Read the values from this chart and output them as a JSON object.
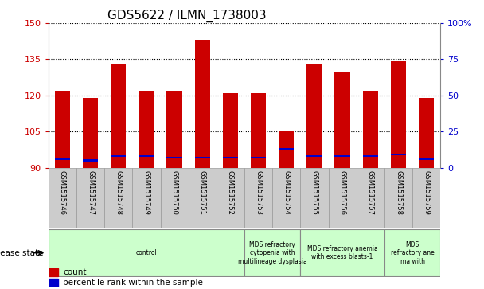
{
  "title": "GDS5622 / ILMN_1738003",
  "samples": [
    "GSM1515746",
    "GSM1515747",
    "GSM1515748",
    "GSM1515749",
    "GSM1515750",
    "GSM1515751",
    "GSM1515752",
    "GSM1515753",
    "GSM1515754",
    "GSM1515755",
    "GSM1515756",
    "GSM1515757",
    "GSM1515758",
    "GSM1515759"
  ],
  "counts": [
    122,
    119,
    133,
    122,
    122,
    143,
    121,
    121,
    105,
    133,
    130,
    122,
    134,
    119
  ],
  "percentile_ranks_pct": [
    6,
    5,
    8,
    8,
    7,
    7,
    7,
    7,
    13,
    8,
    8,
    8,
    9,
    6
  ],
  "ymin": 90,
  "ymax": 150,
  "yticks": [
    90,
    105,
    120,
    135,
    150
  ],
  "right_yticks": [
    0,
    25,
    50,
    75,
    100
  ],
  "bar_color_red": "#CC0000",
  "bar_color_blue": "#0000CC",
  "bar_width": 0.55,
  "disease_groups": [
    {
      "label": "control",
      "start": 0,
      "end": 7
    },
    {
      "label": "MDS refractory\ncytopenia with\nmultilineage dysplasia",
      "start": 7,
      "end": 9
    },
    {
      "label": "MDS refractory anemia\nwith excess blasts-1",
      "start": 9,
      "end": 12
    },
    {
      "label": "MDS\nrefractory ane\nma with",
      "start": 12,
      "end": 14
    }
  ],
  "legend_count_label": "count",
  "legend_percentile_label": "percentile rank within the sample",
  "disease_state_label": "disease state",
  "tick_color_left": "#CC0000",
  "tick_color_right": "#0000CC",
  "group_color": "#CCFFCC",
  "group_edge_color": "#888888",
  "sample_box_color": "#CCCCCC",
  "sample_box_edge": "#999999",
  "bg_color": "#FFFFFF",
  "plot_bg": "#FFFFFF"
}
